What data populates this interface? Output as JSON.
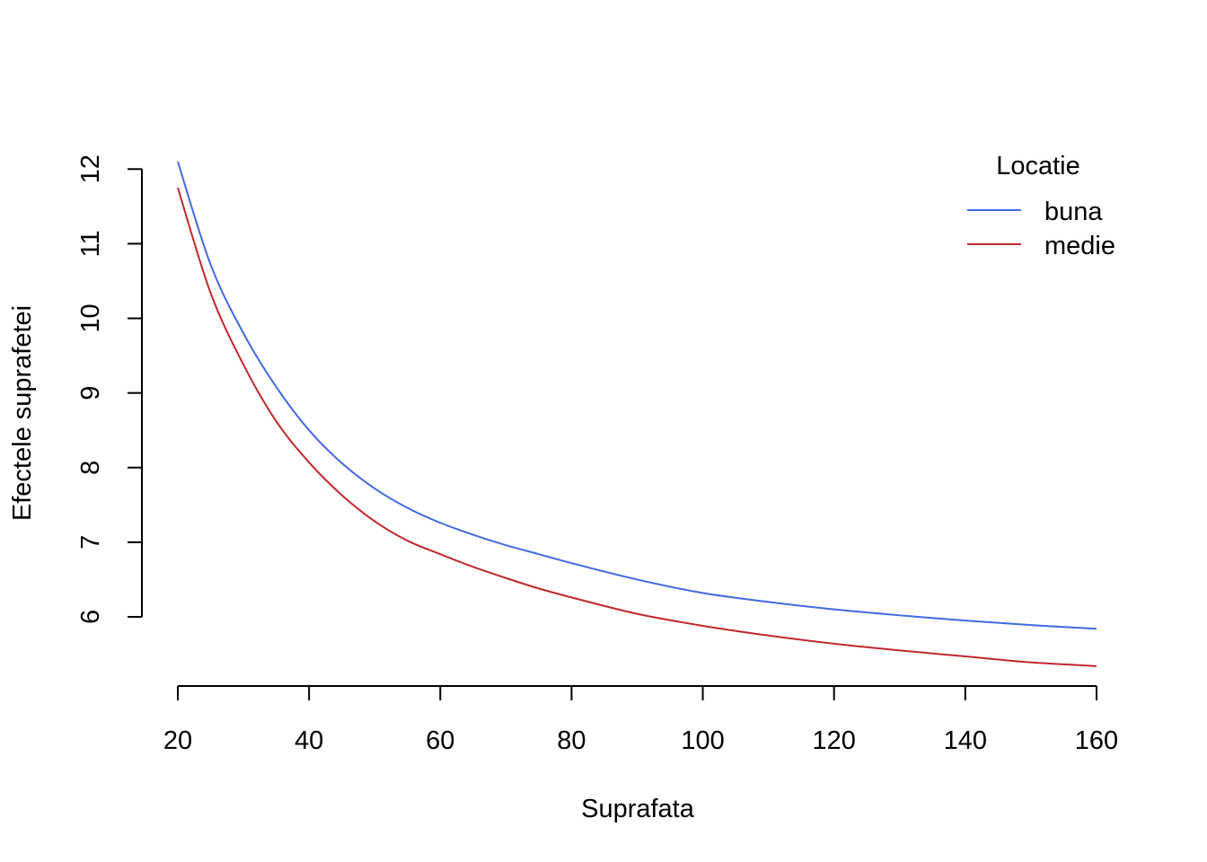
{
  "chart_data": {
    "type": "line",
    "title": "",
    "xlabel": "Suprafata",
    "ylabel": "Efectele suprafetei",
    "xlim": [
      20,
      160
    ],
    "ylim": [
      5.35,
      12.1
    ],
    "x_ticks": [
      20,
      40,
      60,
      80,
      100,
      120,
      140,
      160
    ],
    "x_tick_labels": [
      "20",
      "40",
      "60",
      "80",
      "100",
      "120",
      "140",
      "160"
    ],
    "y_ticks": [
      6,
      7,
      8,
      9,
      10,
      11,
      12
    ],
    "y_tick_labels": [
      "6",
      "7",
      "8",
      "9",
      "10",
      "11",
      "12"
    ],
    "grid": false,
    "legend": {
      "title": "Locatie",
      "position": "top-right"
    },
    "series": [
      {
        "name": "buna",
        "color": "#4169E1",
        "x": [
          20,
          25,
          30,
          35,
          40,
          45,
          50,
          55,
          60,
          65,
          70,
          75,
          80,
          90,
          100,
          110,
          120,
          130,
          140,
          150,
          160
        ],
        "y": [
          12.1,
          10.72,
          9.8,
          9.08,
          8.5,
          8.06,
          7.72,
          7.46,
          7.26,
          7.1,
          6.96,
          6.84,
          6.72,
          6.5,
          6.32,
          6.2,
          6.1,
          6.02,
          5.95,
          5.89,
          5.84
        ]
      },
      {
        "name": "medie",
        "color": "#C0282D",
        "x": [
          20,
          25,
          30,
          35,
          40,
          45,
          50,
          55,
          60,
          65,
          70,
          75,
          80,
          90,
          100,
          110,
          120,
          130,
          140,
          150,
          160
        ],
        "y": [
          11.75,
          10.34,
          9.38,
          8.62,
          8.07,
          7.63,
          7.28,
          7.02,
          6.84,
          6.67,
          6.52,
          6.38,
          6.26,
          6.04,
          5.88,
          5.75,
          5.64,
          5.55,
          5.47,
          5.39,
          5.34
        ]
      }
    ]
  }
}
